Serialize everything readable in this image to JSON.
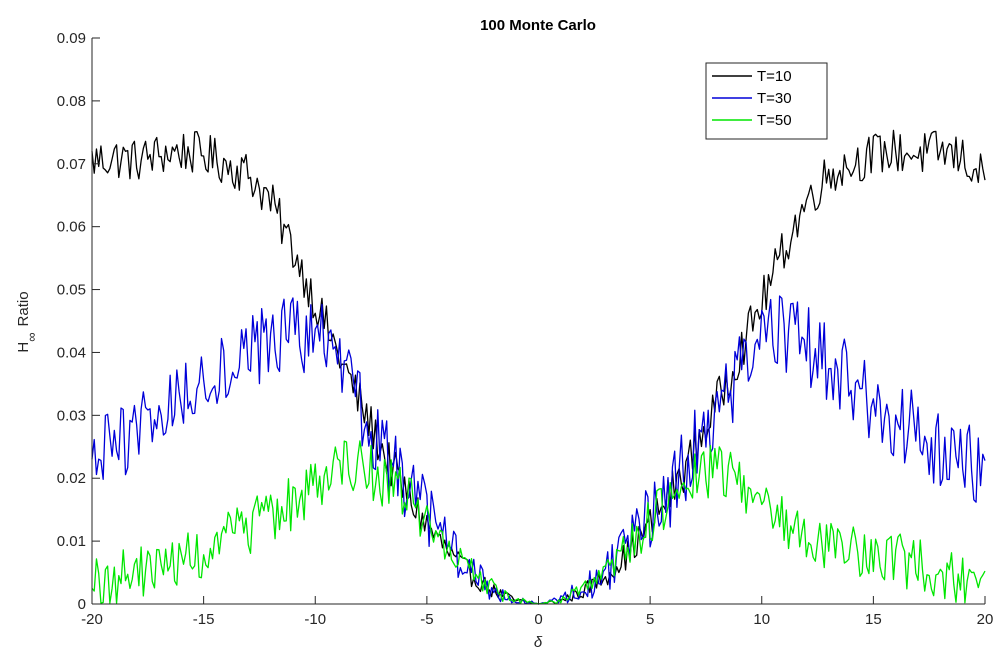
{
  "chart_data": {
    "type": "line",
    "title": "100 Monte Carlo",
    "xlabel": "δ",
    "ylabel_main": "H",
    "ylabel_sub": "∞",
    "ylabel_rest": "Ratio",
    "xlim": [
      -20,
      20
    ],
    "ylim": [
      0,
      0.09
    ],
    "xticks": [
      -20,
      -15,
      -10,
      -5,
      0,
      5,
      10,
      15,
      20
    ],
    "yticks": [
      0,
      0.01,
      0.02,
      0.03,
      0.04,
      0.05,
      0.06,
      0.07,
      0.08,
      0.09
    ],
    "ytick_labels": [
      "0",
      "0.01",
      "0.02",
      "0.03",
      "0.04",
      "0.05",
      "0.06",
      "0.07",
      "0.08",
      "0.09"
    ],
    "legend_position": "top-right",
    "series": [
      {
        "name": "T=10",
        "color": "#000000",
        "x": [
          -20,
          -19,
          -18,
          -17,
          -16,
          -15,
          -14,
          -13,
          -12,
          -11,
          -10,
          -9,
          -8,
          -7,
          -6,
          -5,
          -4,
          -3,
          -2,
          -1,
          0,
          1,
          2,
          3,
          4,
          5,
          6,
          7,
          8,
          9,
          10,
          11,
          12,
          13,
          14,
          15,
          16,
          17,
          18,
          19,
          20
        ],
        "y": [
          0.0705,
          0.071,
          0.0705,
          0.0715,
          0.072,
          0.0715,
          0.07,
          0.0685,
          0.064,
          0.0565,
          0.048,
          0.04,
          0.032,
          0.0245,
          0.018,
          0.0125,
          0.008,
          0.0045,
          0.002,
          0.0005,
          0.0,
          0.0005,
          0.002,
          0.0045,
          0.008,
          0.0125,
          0.018,
          0.0245,
          0.032,
          0.04,
          0.048,
          0.0565,
          0.064,
          0.0685,
          0.07,
          0.0715,
          0.072,
          0.0715,
          0.072,
          0.071,
          0.0675
        ],
        "noise": 0.0035
      },
      {
        "name": "T=30",
        "color": "#0000d9",
        "x": [
          -20,
          -19,
          -18,
          -17,
          -16,
          -15,
          -14,
          -13,
          -12,
          -11,
          -10,
          -9,
          -8,
          -7,
          -6,
          -5,
          -4,
          -3,
          -2,
          -1,
          0,
          1,
          2,
          3,
          4,
          5,
          6,
          7,
          8,
          9,
          10,
          11,
          12,
          13,
          14,
          15,
          16,
          17,
          18,
          19,
          20
        ],
        "y": [
          0.022,
          0.025,
          0.028,
          0.03,
          0.033,
          0.036,
          0.038,
          0.04,
          0.042,
          0.043,
          0.043,
          0.038,
          0.031,
          0.025,
          0.019,
          0.014,
          0.009,
          0.005,
          0.0022,
          0.0005,
          0.0,
          0.0005,
          0.0022,
          0.005,
          0.009,
          0.014,
          0.019,
          0.025,
          0.031,
          0.037,
          0.042,
          0.043,
          0.041,
          0.038,
          0.035,
          0.032,
          0.029,
          0.027,
          0.025,
          0.023,
          0.022
        ],
        "noise": 0.0065
      },
      {
        "name": "T=50",
        "color": "#00e600",
        "x": [
          -20,
          -19,
          -18,
          -17,
          -16,
          -15,
          -14,
          -13,
          -12,
          -11,
          -10,
          -9,
          -8,
          -7,
          -6,
          -5,
          -4,
          -3,
          -2,
          -1,
          0,
          1,
          2,
          3,
          4,
          5,
          6,
          7,
          8,
          9,
          10,
          11,
          12,
          13,
          14,
          15,
          16,
          17,
          18,
          19,
          20
        ],
        "y": [
          0.003,
          0.004,
          0.005,
          0.006,
          0.007,
          0.008,
          0.01,
          0.012,
          0.014,
          0.016,
          0.019,
          0.023,
          0.022,
          0.02,
          0.017,
          0.013,
          0.009,
          0.005,
          0.0022,
          0.0005,
          0.0,
          0.0005,
          0.0022,
          0.005,
          0.009,
          0.013,
          0.017,
          0.02,
          0.022,
          0.02,
          0.016,
          0.013,
          0.011,
          0.01,
          0.009,
          0.008,
          0.007,
          0.006,
          0.005,
          0.004,
          0.004
        ],
        "noise": 0.0045
      }
    ]
  }
}
